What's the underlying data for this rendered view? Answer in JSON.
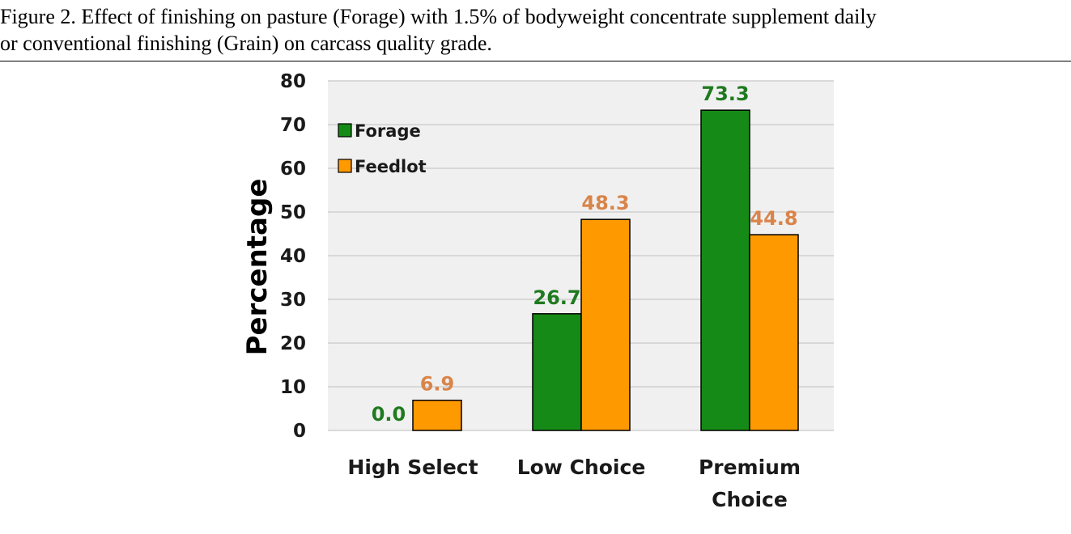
{
  "caption": {
    "line1": "Figure 2. Effect of finishing on pasture (Forage) with 1.5% of bodyweight concentrate supplement daily",
    "line2": "or conventional finishing (Grain) on carcass quality grade."
  },
  "chart_data": {
    "type": "bar",
    "categories": [
      [
        "High Select"
      ],
      [
        "Low Choice"
      ],
      [
        "Premium",
        "Choice"
      ]
    ],
    "series": [
      {
        "name": "Forage",
        "values": [
          0.0,
          26.7,
          73.3
        ],
        "labels": [
          "0.0",
          "26.7",
          "73.3"
        ],
        "color": "#168a16",
        "label_color": "#1f7a1f"
      },
      {
        "name": "Feedlot",
        "values": [
          6.9,
          48.3,
          44.8
        ],
        "labels": [
          "6.9",
          "48.3",
          "44.8"
        ],
        "color": "#ff9900",
        "label_color": "#d9844a"
      }
    ],
    "ylabel": "Percentage",
    "ylim": [
      0,
      80
    ],
    "yticks": [
      "0",
      "10",
      "20",
      "30",
      "40",
      "50",
      "60",
      "70",
      "80"
    ],
    "grid": true,
    "legend_position": "top-left",
    "plot_background": "#f0f0f0"
  }
}
